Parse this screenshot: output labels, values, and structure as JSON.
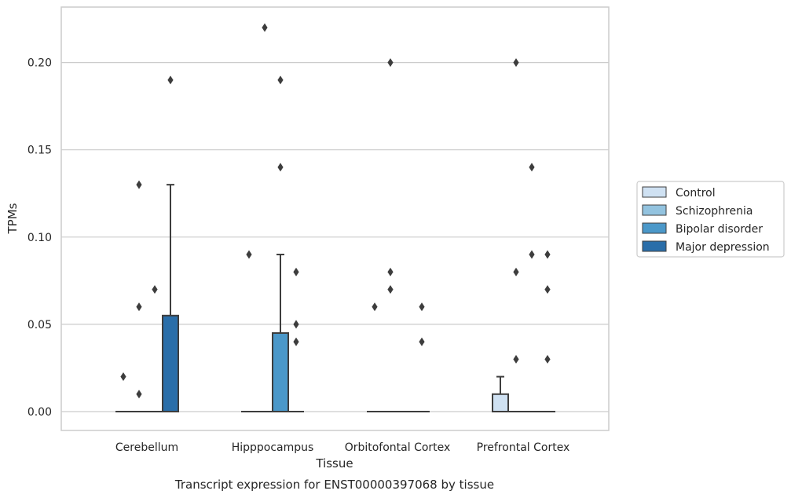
{
  "chart_data": {
    "type": "box",
    "xlabel": "Tissue",
    "ylabel": "TPMs",
    "caption": "Transcript expression for ENST00000397068 by tissue",
    "ylim": [
      -0.011,
      0.232
    ],
    "yticks": [
      "0.00",
      "0.05",
      "0.10",
      "0.15",
      "0.20"
    ],
    "grid": true,
    "legend_position": "right",
    "categories": [
      "Cerebellum",
      "Hipppocampus",
      "Orbitofontal Cortex",
      "Prefrontal Cortex"
    ],
    "series": [
      {
        "name": "Control",
        "color": "#cfe1f2",
        "boxes": [
          {
            "q1": 0,
            "median": 0,
            "q3": 0,
            "whisker_low": 0,
            "whisker_high": 0,
            "outliers": [
              0.02
            ]
          },
          {
            "q1": 0,
            "median": 0,
            "q3": 0,
            "whisker_low": 0,
            "whisker_high": 0,
            "outliers": [
              0.09
            ]
          },
          {
            "q1": 0,
            "median": 0,
            "q3": 0,
            "whisker_low": 0,
            "whisker_high": 0,
            "outliers": [
              0.06
            ]
          },
          {
            "q1": 0,
            "median": 0,
            "q3": 0.01,
            "whisker_low": 0,
            "whisker_high": 0.02,
            "outliers": []
          }
        ]
      },
      {
        "name": "Schizophrenia",
        "color": "#93c3df",
        "boxes": [
          {
            "q1": 0,
            "median": 0,
            "q3": 0,
            "whisker_low": 0,
            "whisker_high": 0,
            "outliers": [
              0.13,
              0.06,
              0.01
            ]
          },
          {
            "q1": 0,
            "median": 0,
            "q3": 0,
            "whisker_low": 0,
            "whisker_high": 0,
            "outliers": [
              0.22
            ]
          },
          {
            "q1": 0,
            "median": 0,
            "q3": 0,
            "whisker_low": 0,
            "whisker_high": 0,
            "outliers": [
              0.2,
              0.08,
              0.07
            ]
          },
          {
            "q1": 0,
            "median": 0,
            "q3": 0,
            "whisker_low": 0,
            "whisker_high": 0,
            "outliers": [
              0.2,
              0.08,
              0.03
            ]
          }
        ]
      },
      {
        "name": "Bipolar disorder",
        "color": "#4b98c9",
        "boxes": [
          {
            "q1": 0,
            "median": 0,
            "q3": 0,
            "whisker_low": 0,
            "whisker_high": 0,
            "outliers": [
              0.07
            ]
          },
          {
            "q1": 0,
            "median": 0,
            "q3": 0.045,
            "whisker_low": 0,
            "whisker_high": 0.09,
            "outliers": [
              0.19,
              0.14
            ]
          },
          {
            "q1": 0,
            "median": 0,
            "q3": 0,
            "whisker_low": 0,
            "whisker_high": 0,
            "outliers": []
          },
          {
            "q1": 0,
            "median": 0,
            "q3": 0,
            "whisker_low": 0,
            "whisker_high": 0,
            "outliers": [
              0.14,
              0.09
            ]
          }
        ]
      },
      {
        "name": "Major depression",
        "color": "#2a6ea9",
        "boxes": [
          {
            "q1": 0,
            "median": 0,
            "q3": 0.055,
            "whisker_low": 0,
            "whisker_high": 0.13,
            "outliers": [
              0.19
            ]
          },
          {
            "q1": 0,
            "median": 0,
            "q3": 0,
            "whisker_low": 0,
            "whisker_high": 0,
            "outliers": [
              0.08,
              0.05,
              0.04
            ]
          },
          {
            "q1": 0,
            "median": 0,
            "q3": 0,
            "whisker_low": 0,
            "whisker_high": 0,
            "outliers": [
              0.06,
              0.04
            ]
          },
          {
            "q1": 0,
            "median": 0,
            "q3": 0,
            "whisker_low": 0,
            "whisker_high": 0,
            "outliers": [
              0.09,
              0.07,
              0.03
            ]
          }
        ]
      }
    ]
  }
}
